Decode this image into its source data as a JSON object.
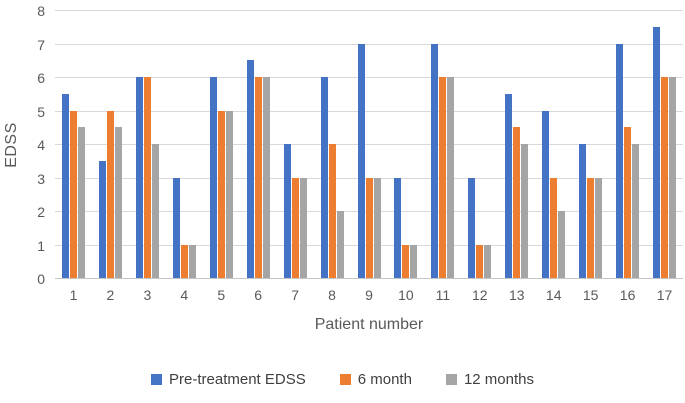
{
  "chart_data": {
    "type": "bar",
    "title": "",
    "xlabel": "Patient number",
    "ylabel": "EDSS",
    "ylim": [
      0,
      8
    ],
    "y_ticks": [
      "0",
      "1",
      "2",
      "3",
      "4",
      "5",
      "6",
      "7",
      "8"
    ],
    "categories": [
      "1",
      "2",
      "3",
      "4",
      "5",
      "6",
      "7",
      "8",
      "9",
      "10",
      "11",
      "12",
      "13",
      "14",
      "15",
      "16",
      "17"
    ],
    "series": [
      {
        "name": "Pre-treatment EDSS",
        "color": "#4472C4",
        "values": [
          5.5,
          3.5,
          6,
          3,
          6,
          6.5,
          4,
          6,
          7,
          3,
          7,
          3,
          5.5,
          5,
          4,
          7,
          7.5
        ]
      },
      {
        "name": "6 month",
        "color": "#ED7D31",
        "values": [
          5,
          5,
          6,
          1,
          5,
          6,
          3,
          4,
          3,
          1,
          6,
          1,
          4.5,
          3,
          3,
          4.5,
          6
        ]
      },
      {
        "name": "12 months",
        "color": "#A5A5A5",
        "values": [
          4.5,
          4.5,
          4,
          1,
          5,
          6,
          3,
          2,
          3,
          1,
          6,
          1,
          4,
          2,
          3,
          4,
          6
        ]
      }
    ],
    "grid": true,
    "legend_position": "bottom",
    "colors": {
      "gridline": "#D9D9D9",
      "axis_line": "#C6C6C6",
      "tick_text": "#595959",
      "legend_text": "#404040",
      "background": "#FFFFFF"
    }
  }
}
